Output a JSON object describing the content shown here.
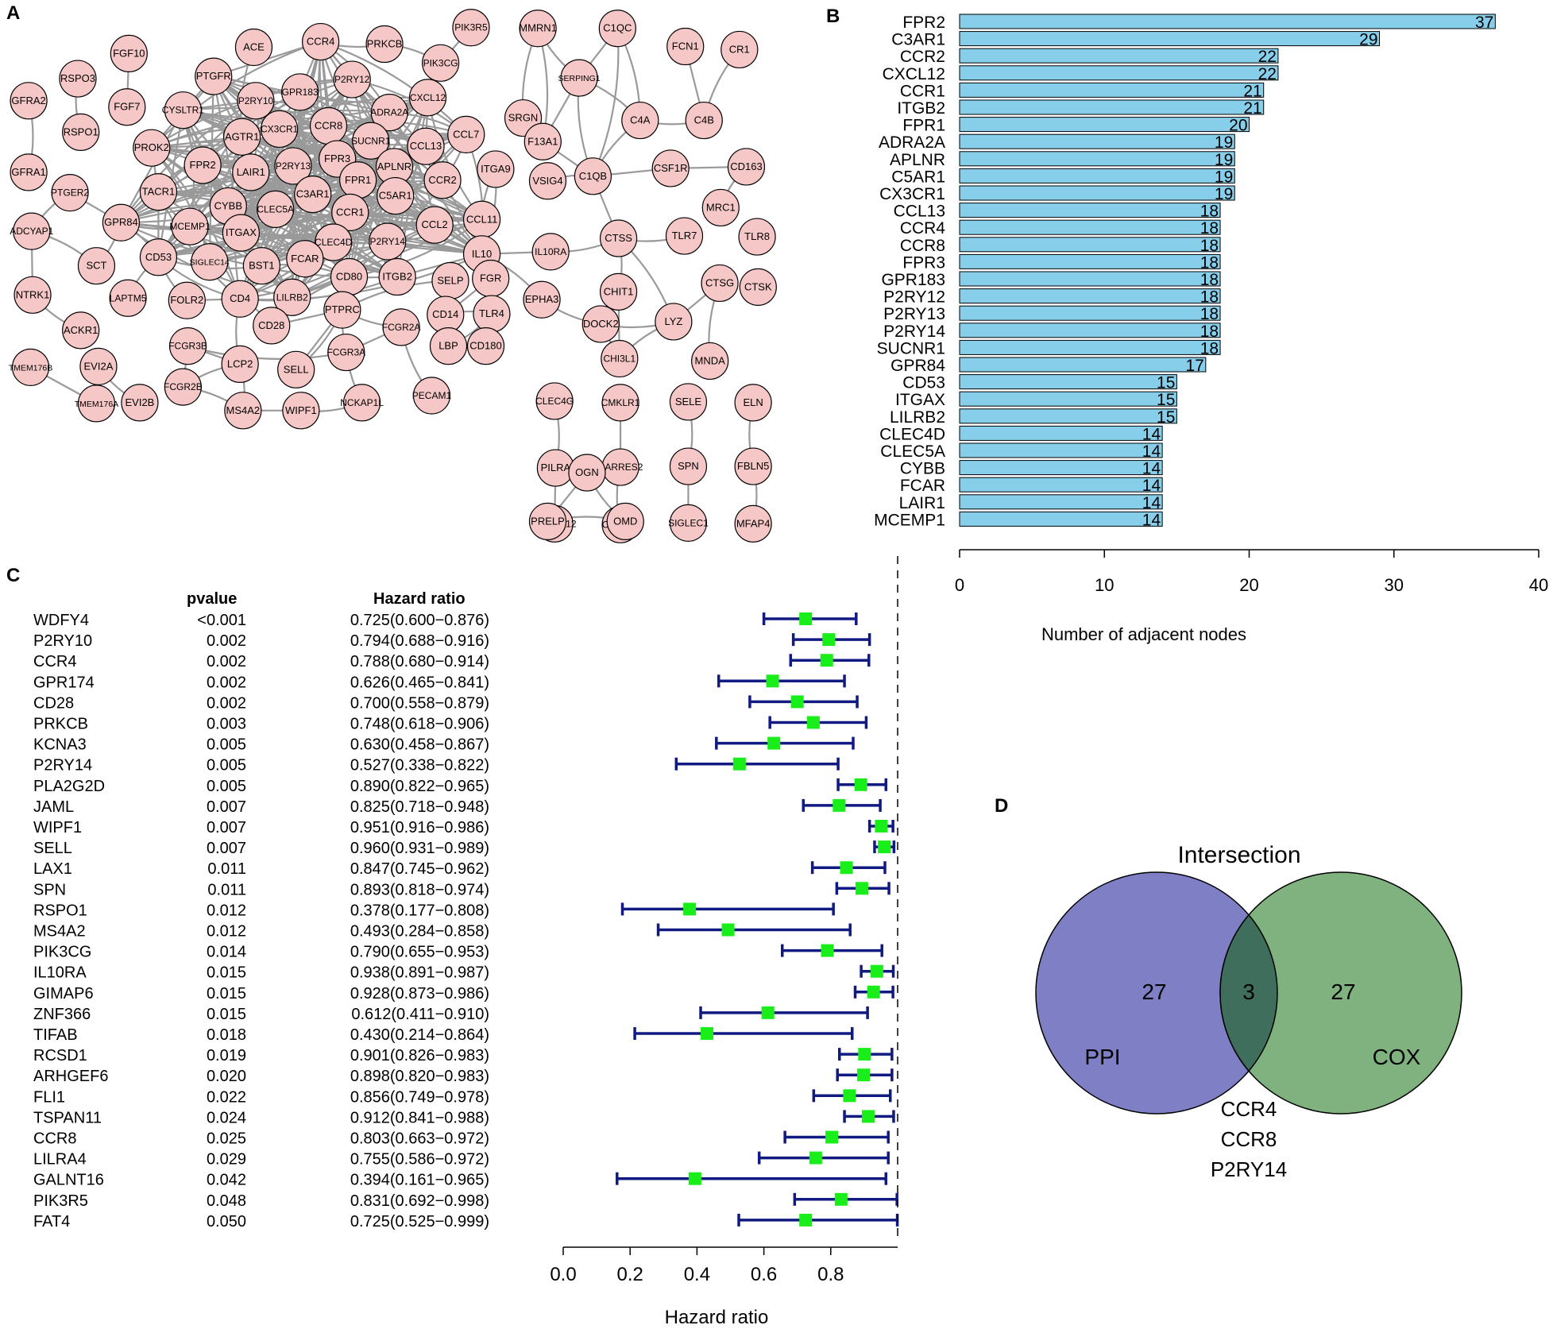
{
  "colors": {
    "node_fill": "#f6c7c7",
    "edge": "#9a9a9a",
    "bar_fill": "#87ceeb",
    "ci_line": "#101a80",
    "point": "#1aee1a",
    "ppi_circle": "#7f7fc6",
    "cox_circle": "#7fb27f",
    "overlap": "#3f6e5c"
  },
  "panels": {
    "a": "A",
    "b": "B",
    "c": "C",
    "d": "D"
  },
  "network": {
    "nodes": [
      "FGF10",
      "RSPO3",
      "GFRA2",
      "RSPO1",
      "FGF7",
      "GFRA1",
      "ACE",
      "PTGFR",
      "CYSLTR1",
      "PROK2",
      "P2RY10",
      "GPR183",
      "CCR4",
      "PRKCB",
      "P2RY12",
      "PIK3R5",
      "PIK3CG",
      "CXCL12",
      "ADRA2A",
      "CCR8",
      "AGTR1",
      "CX3CR1",
      "SUCNR1",
      "CCL13",
      "CCL7",
      "FPR2",
      "LAIR1",
      "P2RY13",
      "FPR3",
      "APLNR",
      "FPR1",
      "TACR1",
      "C3AR1",
      "C5AR1",
      "CCR2",
      "CCL11",
      "PTGER2",
      "GPR84",
      "CYBB",
      "CLEC5A",
      "CCR1",
      "ADCYAP1",
      "SCT",
      "MCEMP1",
      "ITGAX",
      "CLEC4D",
      "P2RY14",
      "CCL2",
      "IL10",
      "CD53",
      "SIGLEC14",
      "BST1",
      "FCAR",
      "CD80",
      "ITGB2",
      "SELP",
      "FGR",
      "NTRK1",
      "LAPTM5",
      "FOLR2",
      "CD4",
      "LILRB2",
      "PTPRC",
      "CD14",
      "TLR4",
      "ACKR1",
      "CD28",
      "FCGR2A",
      "CD180",
      "FCGR3B",
      "LBP",
      "LCP2",
      "SELL",
      "FCGR3A",
      "FCGR2B",
      "TMEM176B",
      "EVI2A",
      "TMEM176A",
      "EVI2B",
      "MS4A2",
      "WIPF1",
      "NCKAP1L",
      "PECAM1",
      "MMRN1",
      "C1QC",
      "FCN1",
      "CR1",
      "SERPING1",
      "SRGN",
      "F13A1",
      "C4A",
      "C4B",
      "C1QB",
      "CSF1R",
      "CD163",
      "ITGA9",
      "VSIG4",
      "MRC1",
      "TLR7",
      "TLR8",
      "IL10RA",
      "CTSS",
      "CHIT1",
      "CTSG",
      "CTSK",
      "EPHA3",
      "DOCK2",
      "LYZ",
      "CHI3L1",
      "MNDA",
      "CLEC4G",
      "CMKLR1",
      "SELE",
      "ELN",
      "PILRA",
      "RARRES2",
      "SPN",
      "FBLN5",
      "COLEC12",
      "CLEC3B",
      "SIGLEC1",
      "MFAP4",
      "OGN",
      "PRELP",
      "OMD"
    ]
  },
  "bar_chart": {
    "chart_data": {
      "type": "bar",
      "orientation": "horizontal",
      "categories": [
        "FPR2",
        "C3AR1",
        "CCR2",
        "CXCL12",
        "CCR1",
        "ITGB2",
        "FPR1",
        "ADRA2A",
        "APLNR",
        "C5AR1",
        "CX3CR1",
        "CCL13",
        "CCR4",
        "CCR8",
        "FPR3",
        "GPR183",
        "P2RY12",
        "P2RY13",
        "P2RY14",
        "SUCNR1",
        "GPR84",
        "CD53",
        "ITGAX",
        "LILRB2",
        "CLEC4D",
        "CLEC5A",
        "CYBB",
        "FCAR",
        "LAIR1",
        "MCEMP1"
      ],
      "values": [
        37,
        29,
        22,
        22,
        21,
        21,
        20,
        19,
        19,
        19,
        19,
        18,
        18,
        18,
        18,
        18,
        18,
        18,
        18,
        18,
        17,
        15,
        15,
        15,
        14,
        14,
        14,
        14,
        14,
        14
      ],
      "xlabel": "Number of adjacent nodes",
      "xlim": [
        0,
        40
      ],
      "xticks": [
        0,
        10,
        20,
        30,
        40
      ]
    }
  },
  "forest": {
    "header_pvalue": "pvalue",
    "header_hr": "Hazard ratio",
    "chart_data": {
      "type": "forest",
      "genes": [
        "WDFY4",
        "P2RY10",
        "CCR4",
        "GPR174",
        "CD28",
        "PRKCB",
        "KCNA3",
        "P2RY14",
        "PLA2G2D",
        "JAML",
        "WIPF1",
        "SELL",
        "LAX1",
        "SPN",
        "RSPO1",
        "MS4A2",
        "PIK3CG",
        "IL10RA",
        "GIMAP6",
        "ZNF366",
        "TIFAB",
        "RCSD1",
        "ARHGEF6",
        "FLI1",
        "TSPAN11",
        "CCR8",
        "LILRA4",
        "GALNT16",
        "PIK3R5",
        "FAT4"
      ],
      "pvalues": [
        "<0.001",
        "0.002",
        "0.002",
        "0.002",
        "0.002",
        "0.003",
        "0.005",
        "0.005",
        "0.005",
        "0.007",
        "0.007",
        "0.007",
        "0.011",
        "0.011",
        "0.012",
        "0.012",
        "0.014",
        "0.015",
        "0.015",
        "0.015",
        "0.018",
        "0.019",
        "0.020",
        "0.022",
        "0.024",
        "0.025",
        "0.029",
        "0.042",
        "0.048",
        "0.050"
      ],
      "hr_text": [
        "0.725(0.600−0.876)",
        "0.794(0.688−0.916)",
        "0.788(0.680−0.914)",
        "0.626(0.465−0.841)",
        "0.700(0.558−0.879)",
        "0.748(0.618−0.906)",
        "0.630(0.458−0.867)",
        "0.527(0.338−0.822)",
        "0.890(0.822−0.965)",
        "0.825(0.718−0.948)",
        "0.951(0.916−0.986)",
        "0.960(0.931−0.989)",
        "0.847(0.745−0.962)",
        "0.893(0.818−0.974)",
        "0.378(0.177−0.808)",
        "0.493(0.284−0.858)",
        "0.790(0.655−0.953)",
        "0.938(0.891−0.987)",
        "0.928(0.873−0.986)",
        "0.612(0.411−0.910)",
        "0.430(0.214−0.864)",
        "0.901(0.826−0.983)",
        "0.898(0.820−0.983)",
        "0.856(0.749−0.978)",
        "0.912(0.841−0.988)",
        "0.803(0.663−0.972)",
        "0.755(0.586−0.972)",
        "0.394(0.161−0.965)",
        "0.831(0.692−0.998)",
        "0.725(0.525−0.999)"
      ],
      "hr": [
        0.725,
        0.794,
        0.788,
        0.626,
        0.7,
        0.748,
        0.63,
        0.527,
        0.89,
        0.825,
        0.951,
        0.96,
        0.847,
        0.893,
        0.378,
        0.493,
        0.79,
        0.938,
        0.928,
        0.612,
        0.43,
        0.901,
        0.898,
        0.856,
        0.912,
        0.803,
        0.755,
        0.394,
        0.831,
        0.725
      ],
      "lower": [
        0.6,
        0.688,
        0.68,
        0.465,
        0.558,
        0.618,
        0.458,
        0.338,
        0.822,
        0.718,
        0.916,
        0.931,
        0.745,
        0.818,
        0.177,
        0.284,
        0.655,
        0.891,
        0.873,
        0.411,
        0.214,
        0.826,
        0.82,
        0.749,
        0.841,
        0.663,
        0.586,
        0.161,
        0.692,
        0.525
      ],
      "upper": [
        0.876,
        0.916,
        0.914,
        0.841,
        0.879,
        0.906,
        0.867,
        0.822,
        0.965,
        0.948,
        0.986,
        0.989,
        0.962,
        0.974,
        0.808,
        0.858,
        0.953,
        0.987,
        0.986,
        0.91,
        0.864,
        0.983,
        0.983,
        0.978,
        0.988,
        0.972,
        0.972,
        0.965,
        0.998,
        0.999
      ],
      "xlabel": "Hazard ratio",
      "xlim": [
        0,
        1
      ],
      "xticks": [
        "0.0",
        "0.2",
        "0.4",
        "0.6",
        "0.8"
      ],
      "reference_line": 1.0
    }
  },
  "venn": {
    "title": "Intersection",
    "left_label": "PPI",
    "right_label": "COX",
    "left_count": "27",
    "overlap_count": "3",
    "right_count": "27",
    "shared_genes": [
      "CCR4",
      "CCR8",
      "P2RY14"
    ]
  }
}
